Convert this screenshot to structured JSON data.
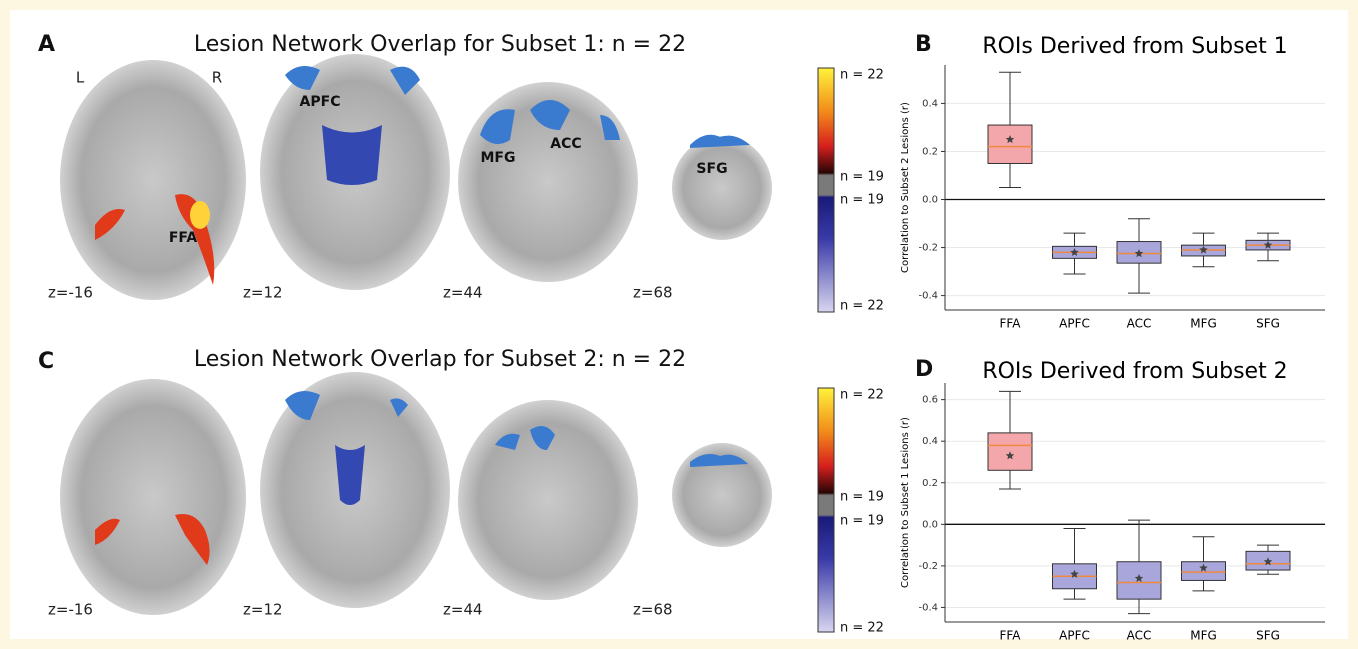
{
  "brain_panels": [
    {
      "letter": "A",
      "title": "Lesion Network Overlap for Subset 1: n = 22",
      "orientation_labels": [
        "L",
        "R"
      ],
      "region_labels": [
        "APFC",
        "MFG",
        "ACC",
        "SFG",
        "FFA"
      ],
      "slice_labels": [
        "z=-16",
        "z=12",
        "z=44",
        "z=68"
      ],
      "colorbar_labels": [
        "n = 22",
        "n = 19",
        "n = 19",
        "n = 22"
      ]
    },
    {
      "letter": "C",
      "title": "Lesion Network Overlap for Subset 2: n = 22",
      "slice_labels": [
        "z=-16",
        "z=12",
        "z=44",
        "z=68"
      ],
      "colorbar_labels": [
        "n = 22",
        "n = 19",
        "n = 19",
        "n = 22"
      ]
    }
  ],
  "chart_data": [
    {
      "type": "box",
      "panel_label": "B",
      "title": "ROIs Derived from Subset 1",
      "y_label": "Correlation to Subset 2 Lesions (r)",
      "categories": [
        "FFA",
        "APFC",
        "ACC",
        "MFG",
        "SFG"
      ],
      "whisker_low": [
        0.05,
        -0.31,
        -0.39,
        -0.28,
        -0.255
      ],
      "q1": [
        0.15,
        -0.245,
        -0.265,
        -0.235,
        -0.21
      ],
      "median": [
        0.22,
        -0.22,
        -0.225,
        -0.21,
        -0.19
      ],
      "q3": [
        0.31,
        -0.195,
        -0.175,
        -0.19,
        -0.17
      ],
      "whisker_high": [
        0.53,
        -0.14,
        -0.08,
        -0.14,
        -0.14
      ],
      "mean": [
        0.25,
        -0.22,
        -0.225,
        -0.21,
        -0.19
      ],
      "colors": [
        "#f4a7ab",
        "#a9a6dc",
        "#a9a6dc",
        "#a9a6dc",
        "#a9a6dc"
      ],
      "median_color": "#f0883e",
      "ylim": [
        -0.46,
        0.56
      ],
      "yticks": [
        -0.4,
        -0.2,
        {
          "value": 0,
          "label": "0.0"
        },
        0.2,
        0.4
      ],
      "grid": true
    },
    {
      "type": "box",
      "panel_label": "D",
      "title": "ROIs Derived from Subset 2",
      "y_label": "Correlation to Subset 1 Lesions (r)",
      "categories": [
        "FFA",
        "APFC",
        "ACC",
        "MFG",
        "SFG"
      ],
      "whisker_low": [
        0.17,
        -0.36,
        -0.43,
        -0.32,
        -0.24
      ],
      "q1": [
        0.26,
        -0.31,
        -0.36,
        -0.27,
        -0.22
      ],
      "median": [
        0.38,
        -0.25,
        -0.28,
        -0.23,
        -0.19
      ],
      "q3": [
        0.44,
        -0.19,
        -0.18,
        -0.18,
        -0.13
      ],
      "whisker_high": [
        0.64,
        -0.02,
        0.02,
        -0.06,
        -0.1
      ],
      "mean": [
        0.33,
        -0.24,
        -0.26,
        -0.21,
        -0.18
      ],
      "colors": [
        "#f4a7ab",
        "#a9a6dc",
        "#a9a6dc",
        "#a9a6dc",
        "#a9a6dc"
      ],
      "median_color": "#f0883e",
      "ylim": [
        -0.47,
        0.68
      ],
      "yticks": [
        -0.4,
        -0.2,
        {
          "value": 0,
          "label": "0.0"
        },
        0.2,
        0.4,
        0.6
      ],
      "grid": true
    }
  ]
}
